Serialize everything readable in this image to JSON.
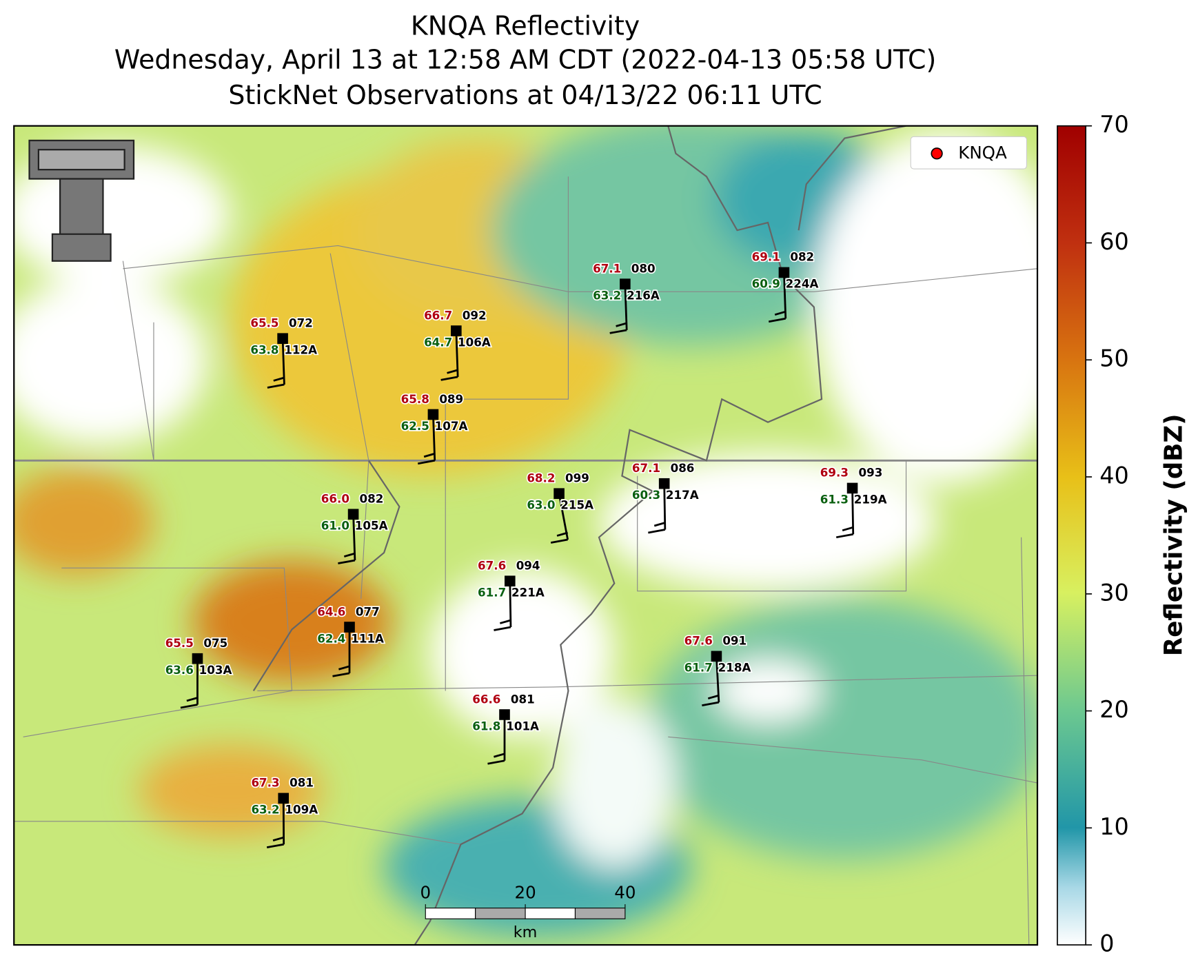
{
  "header": {
    "title": "KNQA Reflectivity",
    "subtitle": "Wednesday, April 13 at 12:58 AM CDT (2022-04-13 05:58 UTC)",
    "observations": "StickNet Observations at 04/13/22 06:11 UTC"
  },
  "legend": {
    "label": "KNQA",
    "color": "#ff0000"
  },
  "colorbar": {
    "label": "Reflectivity (dBZ)",
    "lim": [
      0,
      70
    ],
    "ticks": [
      0,
      10,
      20,
      30,
      40,
      50,
      60,
      70
    ]
  },
  "scale_bar": {
    "ticks": [
      0,
      20,
      40
    ],
    "unit": "km"
  },
  "stations": [
    {
      "id": "112A",
      "temperature": "65.5",
      "dewpoint": "63.8",
      "value": "072"
    },
    {
      "id": "106A",
      "temperature": "66.7",
      "dewpoint": "64.7",
      "value": "092"
    },
    {
      "id": "107A",
      "temperature": "65.8",
      "dewpoint": "62.5",
      "value": "089"
    },
    {
      "id": "216A",
      "temperature": "67.1",
      "dewpoint": "63.2",
      "value": "080"
    },
    {
      "id": "224A",
      "temperature": "69.1",
      "dewpoint": "60.9",
      "value": "082"
    },
    {
      "id": "105A",
      "temperature": "66.0",
      "dewpoint": "61.0",
      "value": "082"
    },
    {
      "id": "215A",
      "temperature": "68.2",
      "dewpoint": "63.0",
      "value": "099"
    },
    {
      "id": "217A",
      "temperature": "67.1",
      "dewpoint": "60.3",
      "value": "086"
    },
    {
      "id": "219A",
      "temperature": "69.3",
      "dewpoint": "61.3",
      "value": "093"
    },
    {
      "id": "221A",
      "temperature": "67.6",
      "dewpoint": "61.7",
      "value": "094"
    },
    {
      "id": "111A",
      "temperature": "64.6",
      "dewpoint": "62.4",
      "value": "077"
    },
    {
      "id": "103A",
      "temperature": "65.5",
      "dewpoint": "63.6",
      "value": "075"
    },
    {
      "id": "218A",
      "temperature": "67.6",
      "dewpoint": "61.7",
      "value": "091"
    },
    {
      "id": "101A",
      "temperature": "66.6",
      "dewpoint": "61.8",
      "value": "081"
    },
    {
      "id": "109A",
      "temperature": "67.3",
      "dewpoint": "63.2",
      "value": "081"
    }
  ]
}
